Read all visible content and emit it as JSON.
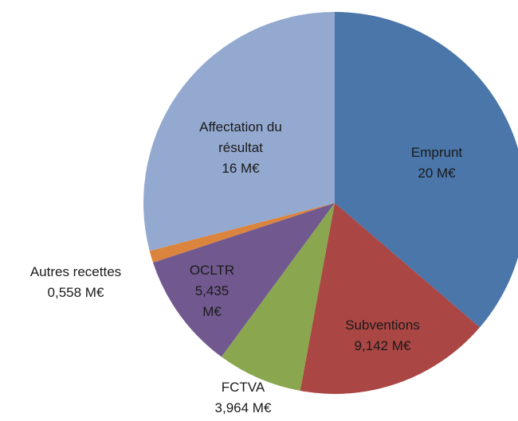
{
  "chart_data": {
    "type": "pie",
    "categories": [
      "Emprunt",
      "Subventions",
      "FCTVA",
      "OCLTR",
      "Autres recettes",
      "Affectation du résultat"
    ],
    "values": [
      20,
      9.142,
      3.964,
      5.435,
      0.558,
      16
    ],
    "value_labels": [
      "20 M€",
      "9,142 M€",
      "3,964 M€",
      "5,435 M€",
      "0,558 M€",
      "16 M€"
    ],
    "colors": [
      "#4a76aa",
      "#aa4643",
      "#8aa74f",
      "#71598f",
      "#db843d",
      "#94a9d0"
    ]
  }
}
